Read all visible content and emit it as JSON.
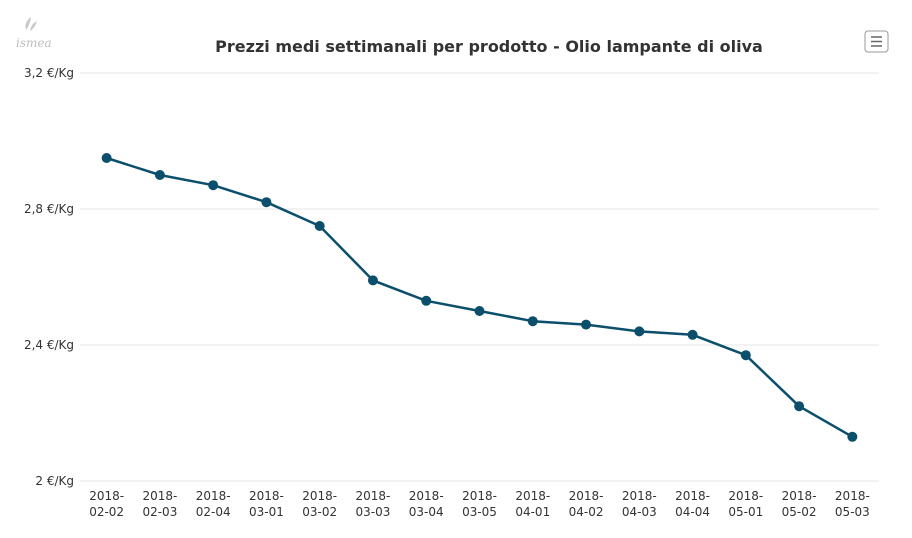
{
  "logo": {
    "text": "ismea"
  },
  "menu": {
    "icon": "hamburger-menu-icon"
  },
  "colors": {
    "series": "#0b4f6c",
    "grid": "#e6e6e6",
    "text": "#333333"
  },
  "chart_data": {
    "type": "line",
    "title": "Prezzi medi settimanali per prodotto - Olio lampante di oliva",
    "xlabel": "",
    "ylabel": "",
    "ylim": [
      2.0,
      3.2
    ],
    "yticks": [
      2.0,
      2.4,
      2.8,
      3.2
    ],
    "ytick_labels": [
      "2 €/Kg",
      "2,4 €/Kg",
      "2,8 €/Kg",
      "3,2 €/Kg"
    ],
    "categories": [
      "2018-02-02",
      "2018-02-03",
      "2018-02-04",
      "2018-03-01",
      "2018-03-02",
      "2018-03-03",
      "2018-03-04",
      "2018-03-05",
      "2018-04-01",
      "2018-04-02",
      "2018-04-03",
      "2018-04-04",
      "2018-05-01",
      "2018-05-02",
      "2018-05-03"
    ],
    "series": [
      {
        "name": "Olio lampante di oliva",
        "values": [
          2.95,
          2.9,
          2.87,
          2.82,
          2.75,
          2.59,
          2.53,
          2.5,
          2.47,
          2.46,
          2.44,
          2.43,
          2.37,
          2.22,
          2.13
        ]
      }
    ]
  }
}
